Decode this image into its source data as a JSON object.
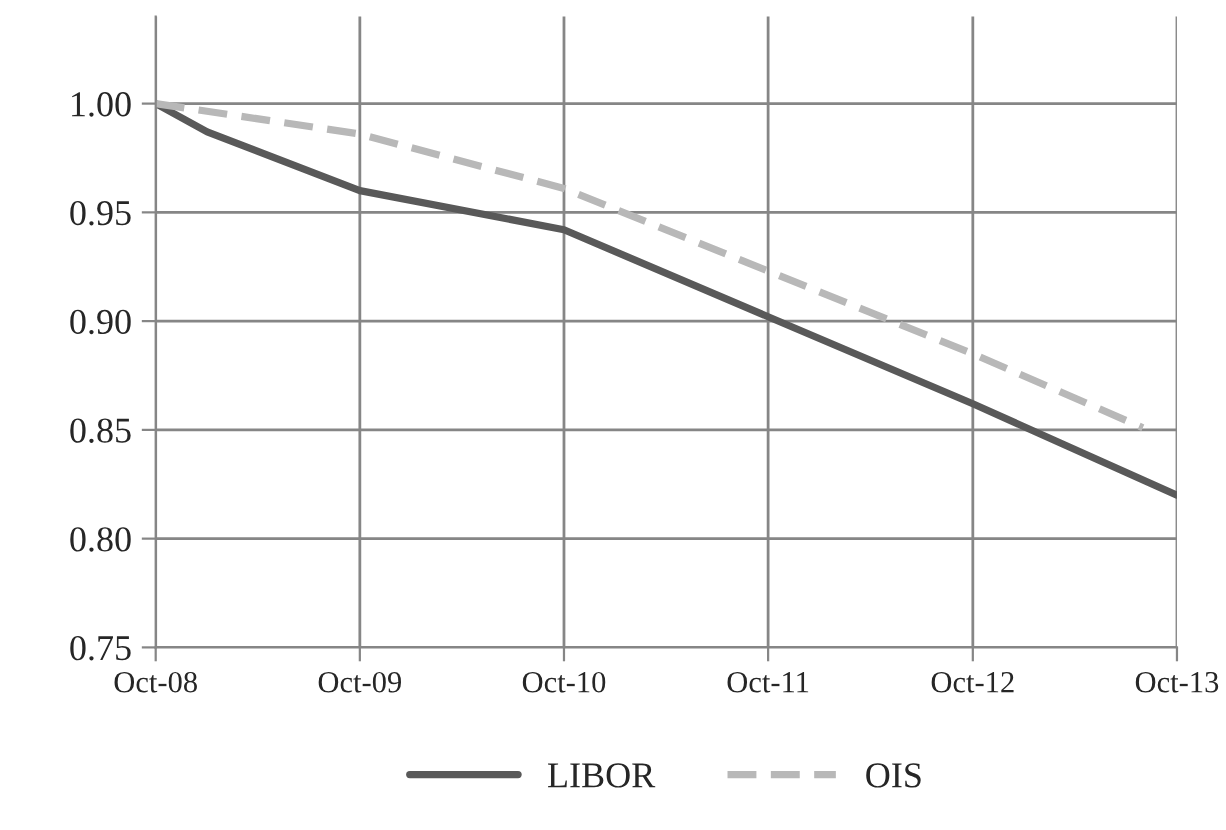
{
  "chart_data": {
    "type": "line",
    "x": [
      "2008-10",
      "2009-01",
      "2009-10",
      "2010-10",
      "2011-10",
      "2012-10",
      "2013-10"
    ],
    "series": [
      {
        "name": "LIBOR",
        "color": "#595959",
        "line_style": "solid",
        "values": [
          1.0,
          0.987,
          0.96,
          0.942,
          0.902,
          0.862,
          0.82
        ]
      },
      {
        "name": "OIS",
        "color": "#b8b8b8",
        "line_style": "dashed",
        "x": [
          "2008-10",
          "2009-10",
          "2010-10",
          "2011-10",
          "2012-10",
          "2013-08"
        ],
        "values": [
          1.0,
          0.986,
          0.961,
          0.923,
          0.885,
          0.851
        ]
      }
    ],
    "xlim": [
      "2008-10",
      "2013-10"
    ],
    "xticks": [
      {
        "value": "2008-10",
        "label": "Oct-08"
      },
      {
        "value": "2009-10",
        "label": "Oct-09"
      },
      {
        "value": "2010-10",
        "label": "Oct-10"
      },
      {
        "value": "2011-10",
        "label": "Oct-11"
      },
      {
        "value": "2012-10",
        "label": "Oct-12"
      },
      {
        "value": "2013-10",
        "label": "Oct-13"
      }
    ],
    "ylim": [
      0.75,
      1.04
    ],
    "yticks": [
      {
        "value": 0.75,
        "label": "0.75"
      },
      {
        "value": 0.8,
        "label": "0.80"
      },
      {
        "value": 0.85,
        "label": "0.85"
      },
      {
        "value": 0.9,
        "label": "0.90"
      },
      {
        "value": 0.95,
        "label": "0.95"
      },
      {
        "value": 1.0,
        "label": "1.00"
      }
    ],
    "grid": true,
    "legend": "bottom",
    "marker": "none"
  }
}
